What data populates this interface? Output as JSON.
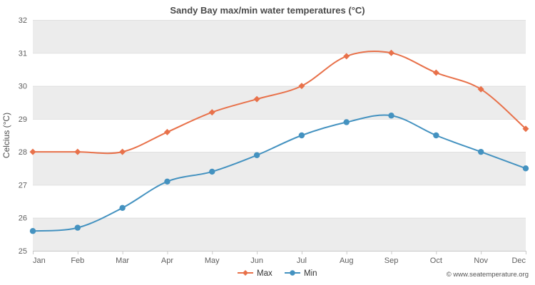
{
  "footer": {
    "copyright": "© www.seatemperature.org"
  },
  "chart_data": {
    "type": "line",
    "title": "Sandy Bay max/min water temperatures (°C)",
    "xlabel": "",
    "ylabel": "Celcius (°C)",
    "categories": [
      "Jan",
      "Feb",
      "Mar",
      "Apr",
      "May",
      "Jun",
      "Jul",
      "Aug",
      "Sep",
      "Oct",
      "Nov",
      "Dec"
    ],
    "series": [
      {
        "name": "Max",
        "color": "#e8714a",
        "marker": "diamond",
        "values": [
          28.0,
          28.0,
          28.0,
          28.6,
          29.2,
          29.6,
          30.0,
          30.9,
          31.0,
          30.4,
          29.9,
          28.7
        ]
      },
      {
        "name": "Min",
        "color": "#4492c0",
        "marker": "circle",
        "values": [
          25.6,
          25.7,
          26.3,
          27.1,
          27.4,
          27.9,
          28.5,
          28.9,
          29.1,
          28.5,
          28.0,
          27.5
        ]
      }
    ],
    "ylim": [
      25,
      32
    ],
    "ytick_step": 1,
    "grid": true,
    "band_color": "#ececec",
    "legend_position": "bottom"
  }
}
